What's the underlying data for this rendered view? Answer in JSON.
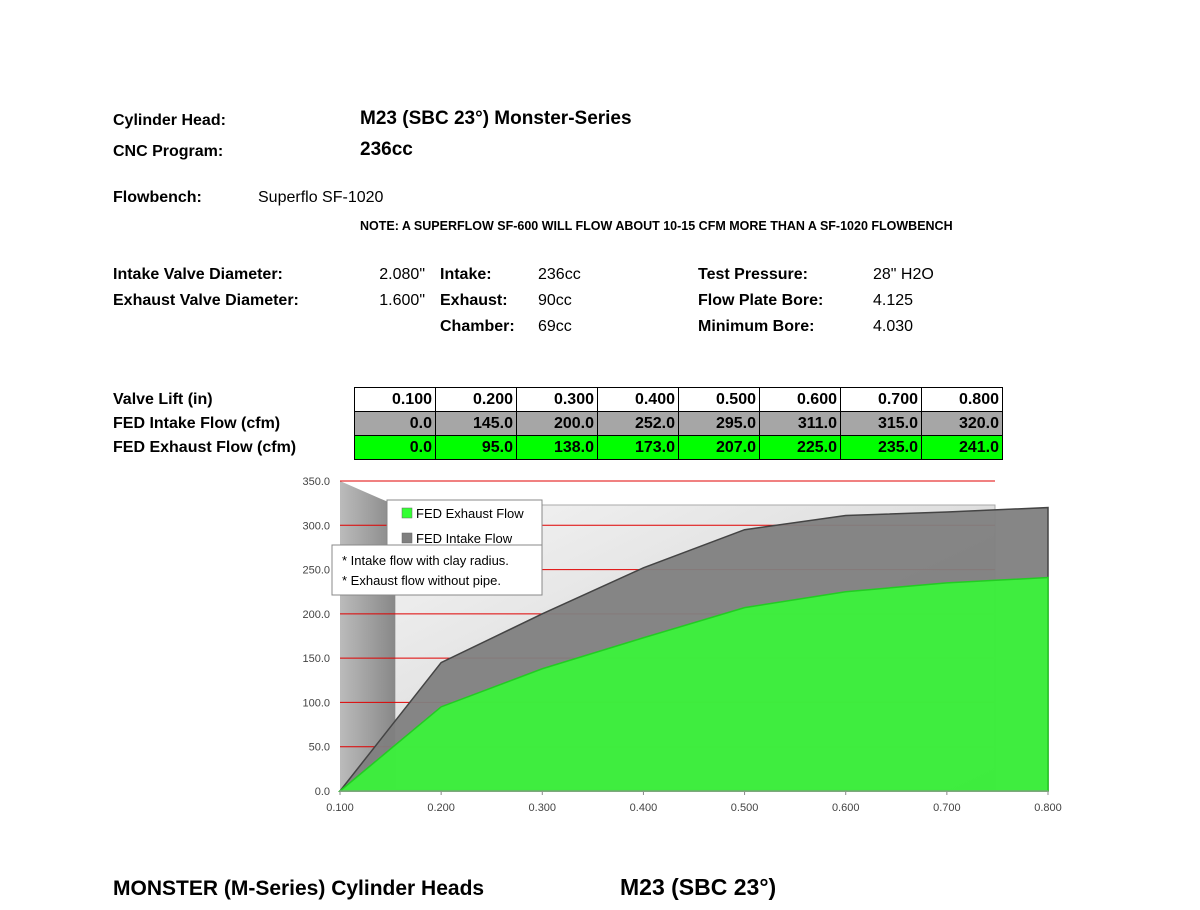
{
  "header": {
    "cylinder_head_label": "Cylinder Head:",
    "cylinder_head": "M23 (SBC 23°) Monster-Series",
    "cnc_label": "CNC Program:",
    "cnc": "236cc",
    "flowbench_label": "Flowbench:",
    "flowbench": "Superflo SF-1020",
    "note": "NOTE: A SUPERFLOW SF-600 WILL FLOW ABOUT 10-15 CFM MORE THAN A SF-1020 FLOWBENCH"
  },
  "specs": {
    "valves": [
      {
        "label": "Intake Valve Diameter:",
        "value": "2.080\""
      },
      {
        "label": "Exhaust Valve Diameter:",
        "value": "1.600\""
      }
    ],
    "volumes": [
      {
        "label": "Intake:",
        "value": "236cc"
      },
      {
        "label": "Exhaust:",
        "value": "90cc"
      },
      {
        "label": "Chamber:",
        "value": "69cc"
      }
    ],
    "bench": [
      {
        "label": "Test Pressure:",
        "value": "28\" H2O"
      },
      {
        "label": "Flow Plate Bore:",
        "value": "4.125"
      },
      {
        "label": "Minimum Bore:",
        "value": "4.030"
      }
    ]
  },
  "table": {
    "rows": [
      {
        "label": "Valve Lift (in)",
        "color": "#ffffff",
        "cells": [
          "0.100",
          "0.200",
          "0.300",
          "0.400",
          "0.500",
          "0.600",
          "0.700",
          "0.800"
        ]
      },
      {
        "label": "FED Intake Flow (cfm)",
        "color": "#a6a6a6",
        "cells": [
          "0.0",
          "145.0",
          "200.0",
          "252.0",
          "295.0",
          "311.0",
          "315.0",
          "320.0"
        ]
      },
      {
        "label": "FED Exhaust Flow (cfm)",
        "color": "#00ff00",
        "cells": [
          "0.0",
          "95.0",
          "138.0",
          "173.0",
          "207.0",
          "225.0",
          "235.0",
          "241.0"
        ]
      }
    ]
  },
  "chart_data": {
    "type": "area",
    "x": [
      0.1,
      0.2,
      0.3,
      0.4,
      0.5,
      0.6,
      0.7,
      0.8
    ],
    "xlim": [
      0.1,
      0.8
    ],
    "xticks": [
      {
        "value": 0.1,
        "label": "0.100"
      },
      {
        "value": 0.2,
        "label": "0.200"
      },
      {
        "value": 0.3,
        "label": "0.300"
      },
      {
        "value": 0.4,
        "label": "0.400"
      },
      {
        "value": 0.5,
        "label": "0.500"
      },
      {
        "value": 0.6,
        "label": "0.600"
      },
      {
        "value": 0.7,
        "label": "0.700"
      },
      {
        "value": 0.8,
        "label": "0.800"
      }
    ],
    "ylim": [
      0,
      350
    ],
    "yticks": [
      {
        "value": 0,
        "label": "0.0"
      },
      {
        "value": 50,
        "label": "50.0"
      },
      {
        "value": 100,
        "label": "100.0"
      },
      {
        "value": 150,
        "label": "150.0"
      },
      {
        "value": 200,
        "label": "200.0"
      },
      {
        "value": 250,
        "label": "250.0"
      },
      {
        "value": 300,
        "label": "300.0"
      },
      {
        "value": 350,
        "label": "350.0"
      }
    ],
    "grid": true,
    "grid_color": "#e00000",
    "series": [
      {
        "name": "FED Exhaust Flow",
        "color": "#33ff33",
        "values": [
          0,
          95,
          138,
          173,
          207,
          225,
          235,
          241
        ]
      },
      {
        "name": "FED Intake Flow",
        "color": "#7f7f7f",
        "values": [
          0,
          145,
          200,
          252,
          295,
          311,
          315,
          320
        ]
      }
    ],
    "notes": [
      "* Intake flow with clay radius.",
      "* Exhaust flow without pipe."
    ]
  },
  "footer": {
    "left": "MONSTER (M-Series) Cylinder Heads",
    "right": "M23 (SBC 23°)"
  }
}
